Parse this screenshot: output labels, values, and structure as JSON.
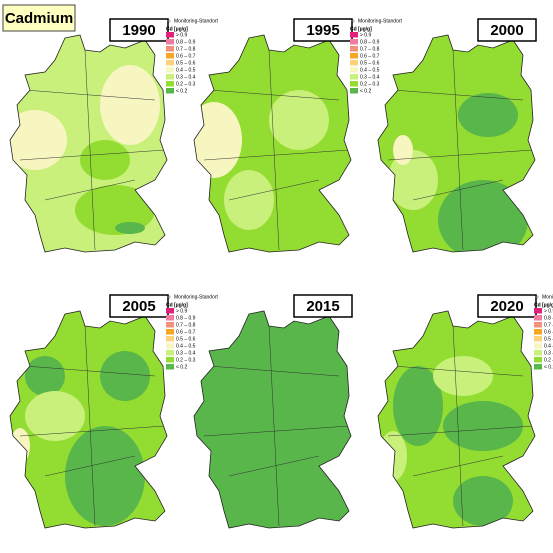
{
  "title": "Cadmium",
  "legend": {
    "marker_label": "Monitoring-Standort",
    "title": "Cd [µg/g]",
    "classes": [
      {
        "label": "> 0.9",
        "color": "#e0207a"
      },
      {
        "label": "0.8 – 0.9",
        "color": "#f07aa0"
      },
      {
        "label": "0.7 – 0.8",
        "color": "#f3907a"
      },
      {
        "label": "0.6 – 0.7",
        "color": "#f5a623"
      },
      {
        "label": "0.5 – 0.6",
        "color": "#ffd27a"
      },
      {
        "label": "0.4 – 0.5",
        "color": "#f7f5c0"
      },
      {
        "label": "0.3 – 0.4",
        "color": "#c8f07a"
      },
      {
        "label": "0.2 – 0.3",
        "color": "#93dc32"
      },
      {
        "label": "< 0.2",
        "color": "#58b64a"
      }
    ]
  },
  "panels": [
    {
      "year": "1990",
      "legend": true
    },
    {
      "year": "1995",
      "legend": true
    },
    {
      "year": "2000",
      "legend": false
    },
    {
      "year": "2005",
      "legend": true
    },
    {
      "year": "2015",
      "legend": false
    },
    {
      "year": "2020",
      "legend": true
    }
  ]
}
